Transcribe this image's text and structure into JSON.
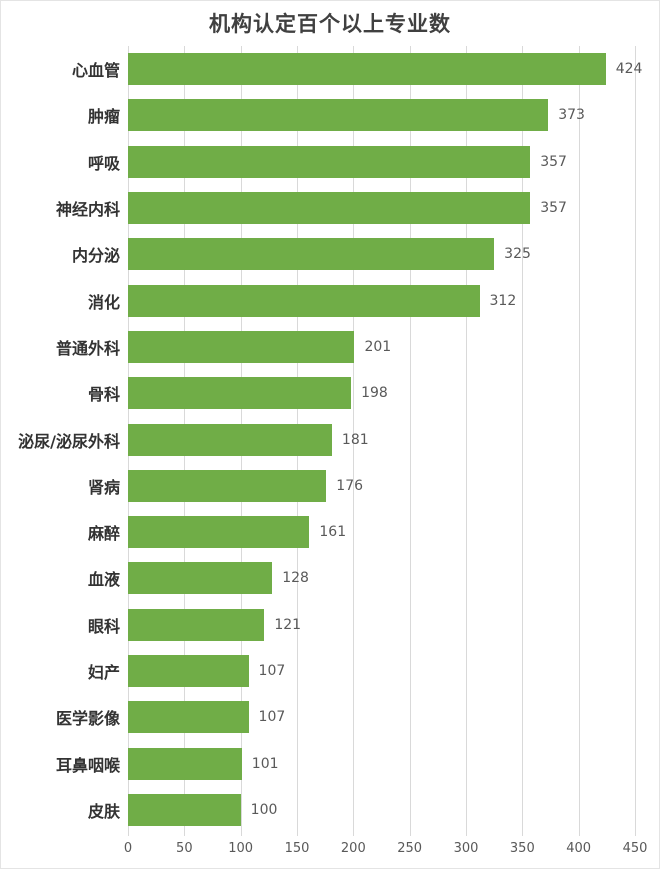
{
  "chart_data": {
    "type": "bar",
    "orientation": "horizontal",
    "title": "机构认定百个以上专业数",
    "categories": [
      "心血管",
      "肿瘤",
      "呼吸",
      "神经内科",
      "内分泌",
      "消化",
      "普通外科",
      "骨科",
      "泌尿/泌尿外科",
      "肾病",
      "麻醉",
      "血液",
      "眼科",
      "妇产",
      "医学影像",
      "耳鼻咽喉",
      "皮肤"
    ],
    "values": [
      424,
      373,
      357,
      357,
      325,
      312,
      201,
      198,
      181,
      176,
      161,
      128,
      121,
      107,
      107,
      101,
      100
    ],
    "x_ticks": [
      0,
      50,
      100,
      150,
      200,
      250,
      300,
      350,
      400,
      450
    ],
    "xlim": [
      0,
      450
    ],
    "grid": true,
    "legend": "none",
    "data_labels": "outside-end",
    "colors": {
      "bar": "#70ad47",
      "gridline": "#d9d9d9",
      "title": "#404040",
      "category_label": "#333333",
      "value_label": "#595959",
      "tick_label": "#595959",
      "background": "#ffffff",
      "frame_border": "#e4e4e4"
    }
  }
}
